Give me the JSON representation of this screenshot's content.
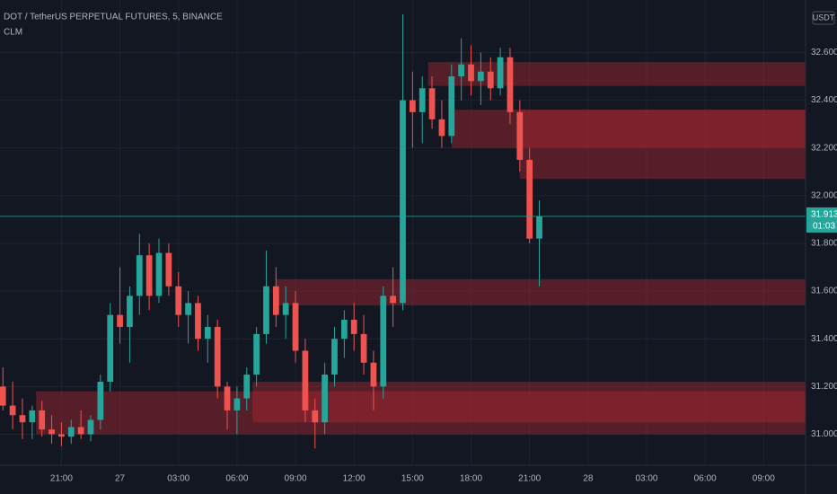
{
  "chart_data": {
    "type": "candlestick",
    "title": "DOT / TetherUS PERPETUAL FUTURES, 5, BINANCE",
    "indicator": "CLM",
    "currency": "USDT",
    "up_color": "#26a69a",
    "down_color": "#ef5350",
    "zone_color": "#b22833",
    "grid": true,
    "xlim": [
      -0.3,
      82.3
    ],
    "xticks": [
      {
        "value": 6,
        "label": "21:00"
      },
      {
        "value": 12,
        "label": "27"
      },
      {
        "value": 18,
        "label": "03:00"
      },
      {
        "value": 24,
        "label": "06:00"
      },
      {
        "value": 30,
        "label": "09:00"
      },
      {
        "value": 36,
        "label": "12:00"
      },
      {
        "value": 42,
        "label": "15:00"
      },
      {
        "value": 48,
        "label": "18:00"
      },
      {
        "value": 54,
        "label": "21:00"
      },
      {
        "value": 60,
        "label": "28"
      },
      {
        "value": 66,
        "label": "03:00"
      },
      {
        "value": 72,
        "label": "06:00"
      },
      {
        "value": 78,
        "label": "09:00"
      }
    ],
    "ylim": [
      30.87,
      32.82
    ],
    "yticks": [
      {
        "value": 31.0,
        "label": "31.000"
      },
      {
        "value": 31.2,
        "label": "31.200"
      },
      {
        "value": 31.4,
        "label": "31.400"
      },
      {
        "value": 31.6,
        "label": "31.600"
      },
      {
        "value": 31.8,
        "label": "31.800"
      },
      {
        "value": 32.0,
        "label": "32.000"
      },
      {
        "value": 32.2,
        "label": "32.200"
      },
      {
        "value": 32.4,
        "label": "32.400"
      },
      {
        "value": 32.6,
        "label": "32.600"
      }
    ],
    "last_price": 31.913,
    "countdown": "01:03",
    "open": [
      31.2,
      31.12,
      31.08,
      31.05,
      31.1,
      31.02,
      31.0,
      30.99,
      31.03,
      31.0,
      31.06,
      31.22,
      31.5,
      31.45,
      31.58,
      31.75,
      31.58,
      31.76,
      31.62,
      31.5,
      31.55,
      31.4,
      31.45,
      31.2,
      31.1,
      31.15,
      31.25,
      31.42,
      31.62,
      31.5,
      31.55,
      31.35,
      31.1,
      31.05,
      31.25,
      31.4,
      31.48,
      31.42,
      31.3,
      31.2,
      31.58,
      31.55,
      32.4,
      32.35,
      32.45,
      32.32,
      32.25,
      32.5,
      32.55,
      32.48,
      32.52,
      32.45,
      32.58,
      32.35,
      32.15,
      31.82
    ],
    "high": [
      31.28,
      31.22,
      31.15,
      31.12,
      31.14,
      31.08,
      31.05,
      31.06,
      31.1,
      31.08,
      31.25,
      31.55,
      31.7,
      31.62,
      31.84,
      31.8,
      31.82,
      31.8,
      31.68,
      31.6,
      31.58,
      31.5,
      31.48,
      31.22,
      31.2,
      31.28,
      31.45,
      31.77,
      31.7,
      31.62,
      31.6,
      31.4,
      31.15,
      31.3,
      31.45,
      31.52,
      31.55,
      31.5,
      31.35,
      31.62,
      31.7,
      32.76,
      32.52,
      32.5,
      32.5,
      32.4,
      32.55,
      32.66,
      32.63,
      32.6,
      32.58,
      32.62,
      32.62,
      32.4,
      32.2,
      31.98
    ],
    "low": [
      31.1,
      31.02,
      30.98,
      30.98,
      30.99,
      30.96,
      30.95,
      30.96,
      30.98,
      30.97,
      31.02,
      31.18,
      31.38,
      31.3,
      31.5,
      31.52,
      31.55,
      31.58,
      31.45,
      31.38,
      31.35,
      31.3,
      31.15,
      31.02,
      31.0,
      31.1,
      31.2,
      31.38,
      31.45,
      31.4,
      31.3,
      31.05,
      30.94,
      31.0,
      31.2,
      31.32,
      31.35,
      31.25,
      31.1,
      31.15,
      31.45,
      31.52,
      32.2,
      32.22,
      32.28,
      32.2,
      32.22,
      32.4,
      32.42,
      32.38,
      32.4,
      32.42,
      32.3,
      32.1,
      31.8,
      31.62
    ],
    "close": [
      31.12,
      31.08,
      31.05,
      31.1,
      31.02,
      31.0,
      30.99,
      31.03,
      31.0,
      31.06,
      31.22,
      31.5,
      31.45,
      31.58,
      31.75,
      31.58,
      31.76,
      31.62,
      31.5,
      31.55,
      31.4,
      31.45,
      31.2,
      31.1,
      31.15,
      31.25,
      31.42,
      31.62,
      31.5,
      31.55,
      31.35,
      31.1,
      31.05,
      31.25,
      31.4,
      31.48,
      31.42,
      31.3,
      31.2,
      31.58,
      31.55,
      32.4,
      32.35,
      32.45,
      32.32,
      32.25,
      32.5,
      32.55,
      32.48,
      32.52,
      32.45,
      32.58,
      32.35,
      32.15,
      31.82,
      31.913
    ],
    "zones": [
      {
        "start": 43.6,
        "low": 32.46,
        "high": 32.56
      },
      {
        "start": 46.0,
        "low": 32.2,
        "high": 32.36
      },
      {
        "start": 53.0,
        "low": 32.07,
        "high": 32.36
      },
      {
        "start": 28.0,
        "low": 31.54,
        "high": 31.65
      },
      {
        "start": 3.4,
        "low": 31.0,
        "high": 31.18
      },
      {
        "start": 25.6,
        "low": 31.05,
        "high": 31.22
      }
    ]
  }
}
